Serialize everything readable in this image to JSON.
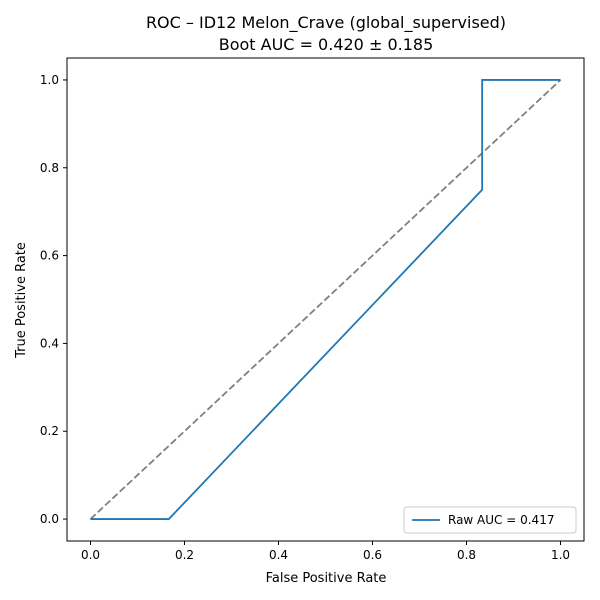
{
  "chart_data": {
    "type": "line",
    "title": [
      "ROC – ID12 Melon_Crave (global_supervised)",
      "Boot AUC = 0.420 ± 0.185"
    ],
    "xlabel": "False Positive Rate",
    "ylabel": "True Positive Rate",
    "xlim": [
      -0.05,
      1.05
    ],
    "ylim": [
      -0.05,
      1.05
    ],
    "xticks": [
      0.0,
      0.2,
      0.4,
      0.6,
      0.8,
      1.0
    ],
    "xtick_labels": [
      "0.0",
      "0.2",
      "0.4",
      "0.6",
      "0.8",
      "1.0"
    ],
    "yticks": [
      0.0,
      0.2,
      0.4,
      0.6,
      0.8,
      1.0
    ],
    "ytick_labels": [
      "0.0",
      "0.2",
      "0.4",
      "0.6",
      "0.8",
      "1.0"
    ],
    "grid": false,
    "legend_position": "lower right",
    "series": [
      {
        "name": "Raw AUC = 0.417",
        "color": "#1f77b4",
        "style": "solid",
        "x": [
          0.0,
          0.1667,
          0.8333,
          0.8333,
          1.0
        ],
        "y": [
          0.0,
          0.0,
          0.75,
          1.0,
          1.0
        ]
      },
      {
        "color": "#808080",
        "style": "dashed",
        "x": [
          0.0,
          1.0
        ],
        "y": [
          0.0,
          1.0
        ]
      }
    ]
  }
}
